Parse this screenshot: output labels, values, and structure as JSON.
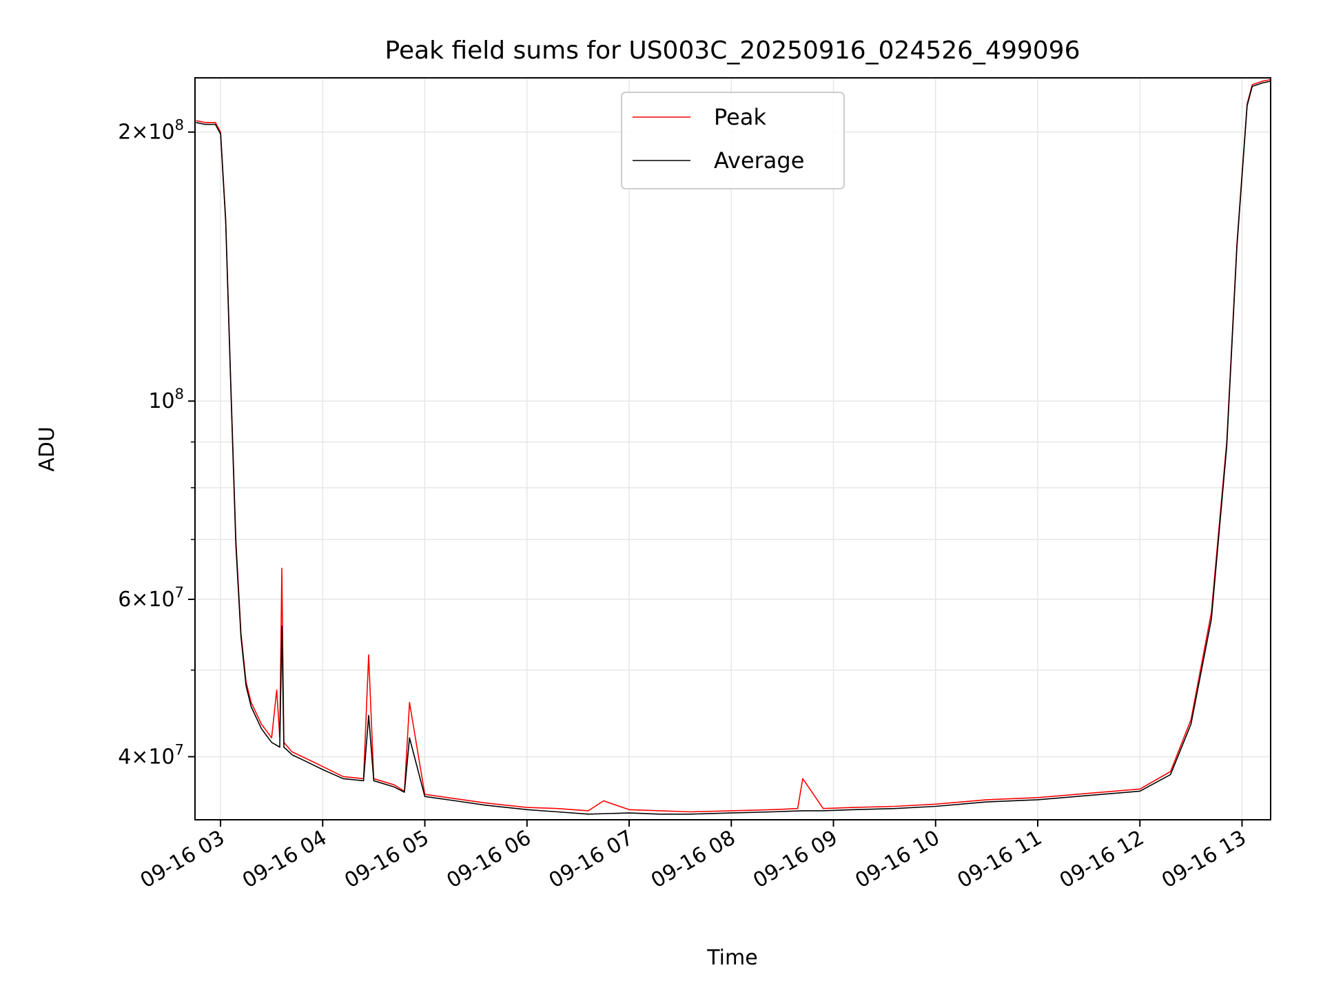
{
  "chart_data": {
    "type": "line",
    "title": "Peak field sums for US003C_20250916_024526_499096",
    "xlabel": "Time",
    "ylabel": "ADU",
    "yscale": "log",
    "grid": true,
    "legend_position": "top-center",
    "xlim_hours": [
      2.75,
      13.28
    ],
    "ylim": [
      34000000,
      230000000
    ],
    "x_ticks": [
      {
        "value": 3,
        "label": "09-16 03"
      },
      {
        "value": 4,
        "label": "09-16 04"
      },
      {
        "value": 5,
        "label": "09-16 05"
      },
      {
        "value": 6,
        "label": "09-16 06"
      },
      {
        "value": 7,
        "label": "09-16 07"
      },
      {
        "value": 8,
        "label": "09-16 08"
      },
      {
        "value": 9,
        "label": "09-16 09"
      },
      {
        "value": 10,
        "label": "09-16 10"
      },
      {
        "value": 11,
        "label": "09-16 11"
      },
      {
        "value": 12,
        "label": "09-16 12"
      },
      {
        "value": 13,
        "label": "09-16 13"
      }
    ],
    "y_ticks": [
      {
        "value": 40000000,
        "base": "4×10",
        "exp": "7"
      },
      {
        "value": 60000000,
        "base": "6×10",
        "exp": "7"
      },
      {
        "value": 100000000,
        "base": "10",
        "exp": "8"
      },
      {
        "value": 200000000,
        "base": "2×10",
        "exp": "8"
      }
    ],
    "y_minor_ticks": [
      50000000,
      70000000,
      80000000,
      90000000
    ],
    "x_unit": "hours since 2025-09-16 00:00",
    "series": [
      {
        "name": "Peak",
        "color": "#ff0000",
        "x": [
          2.76,
          2.85,
          2.95,
          3.0,
          3.05,
          3.1,
          3.15,
          3.2,
          3.25,
          3.3,
          3.4,
          3.5,
          3.55,
          3.58,
          3.6,
          3.62,
          3.7,
          3.8,
          4.0,
          4.2,
          4.4,
          4.45,
          4.5,
          4.7,
          4.8,
          4.85,
          5.0,
          5.3,
          5.6,
          6.0,
          6.3,
          6.6,
          6.75,
          7.0,
          7.3,
          7.6,
          8.0,
          8.4,
          8.65,
          8.7,
          8.9,
          9.2,
          9.6,
          10.0,
          10.5,
          11.0,
          11.5,
          12.0,
          12.3,
          12.5,
          12.7,
          12.85,
          12.95,
          13.05,
          13.1,
          13.2,
          13.28
        ],
        "y": [
          206000000,
          205000000,
          205000000,
          200000000,
          160000000,
          105000000,
          70000000,
          55000000,
          48500000,
          46000000,
          43500000,
          42000000,
          47500000,
          42000000,
          65000000,
          41500000,
          40500000,
          40000000,
          39000000,
          38000000,
          37800000,
          52000000,
          37800000,
          37200000,
          36600000,
          46000000,
          36300000,
          35900000,
          35500000,
          35100000,
          35000000,
          34800000,
          35700000,
          34900000,
          34800000,
          34700000,
          34800000,
          34900000,
          35000000,
          37800000,
          35000000,
          35100000,
          35200000,
          35400000,
          35800000,
          36000000,
          36400000,
          36800000,
          38500000,
          44000000,
          58000000,
          90000000,
          150000000,
          215000000,
          226000000,
          228000000,
          229000000
        ]
      },
      {
        "name": "Average",
        "color": "#000000",
        "x": [
          2.76,
          2.85,
          2.95,
          3.0,
          3.05,
          3.1,
          3.15,
          3.2,
          3.25,
          3.3,
          3.4,
          3.5,
          3.58,
          3.6,
          3.62,
          3.7,
          3.8,
          4.0,
          4.2,
          4.4,
          4.45,
          4.5,
          4.7,
          4.8,
          4.85,
          5.0,
          5.3,
          5.6,
          6.0,
          6.3,
          6.6,
          7.0,
          7.3,
          7.6,
          8.0,
          8.4,
          8.7,
          8.9,
          9.2,
          9.6,
          10.0,
          10.5,
          11.0,
          11.5,
          12.0,
          12.3,
          12.5,
          12.7,
          12.85,
          12.95,
          13.05,
          13.1,
          13.2,
          13.28
        ],
        "y": [
          205000000,
          204000000,
          204000000,
          199000000,
          159000000,
          104000000,
          69000000,
          54500000,
          48000000,
          45500000,
          43000000,
          41500000,
          41000000,
          56000000,
          41000000,
          40200000,
          39700000,
          38700000,
          37800000,
          37600000,
          44500000,
          37600000,
          37000000,
          36500000,
          42000000,
          36100000,
          35700000,
          35300000,
          34900000,
          34700000,
          34500000,
          34600000,
          34500000,
          34500000,
          34600000,
          34700000,
          34800000,
          34800000,
          34900000,
          35000000,
          35200000,
          35600000,
          35800000,
          36200000,
          36600000,
          38200000,
          43500000,
          57000000,
          89000000,
          149000000,
          214000000,
          225000000,
          227000000,
          228000000
        ]
      }
    ]
  }
}
